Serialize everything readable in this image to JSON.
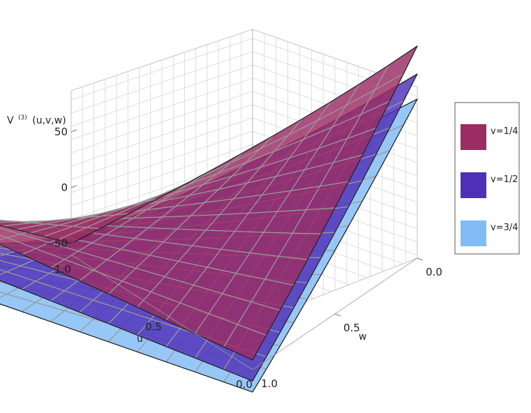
{
  "chart_data": {
    "type": "surface3d",
    "title": "",
    "zlabel": {
      "main": "V",
      "superscript": "(3)",
      "args": "(u,v,w)"
    },
    "xlabel": "u",
    "ylabel": "w",
    "u_ticks": [
      "1.0",
      "0.5",
      "0.0"
    ],
    "w_ticks": [
      "0.0",
      "0.5",
      "1.0"
    ],
    "z_ticks": [
      "50",
      "0",
      "−50"
    ],
    "u_range": [
      0,
      1
    ],
    "w_range": [
      0,
      1
    ],
    "z_range": [
      -60,
      75
    ],
    "legend_position": "right",
    "series": [
      {
        "name": "v=1/4",
        "color": "#9b2c64",
        "corners": {
          "u1_w0": -52,
          "u0_w1": -53,
          "u0_w0": 78,
          "u1_w1": 58
        }
      },
      {
        "name": "v=1/2",
        "color": "#4f2fb8",
        "corners": {
          "u1_w0": -52,
          "u0_w1": -68,
          "u0_w0": 58,
          "u1_w1": 28
        }
      },
      {
        "name": "v=3/4",
        "color": "#80bbf4",
        "corners": {
          "u1_w0": -52,
          "u0_w1": -76,
          "u0_w0": 40,
          "u1_w1": 8
        }
      }
    ]
  }
}
